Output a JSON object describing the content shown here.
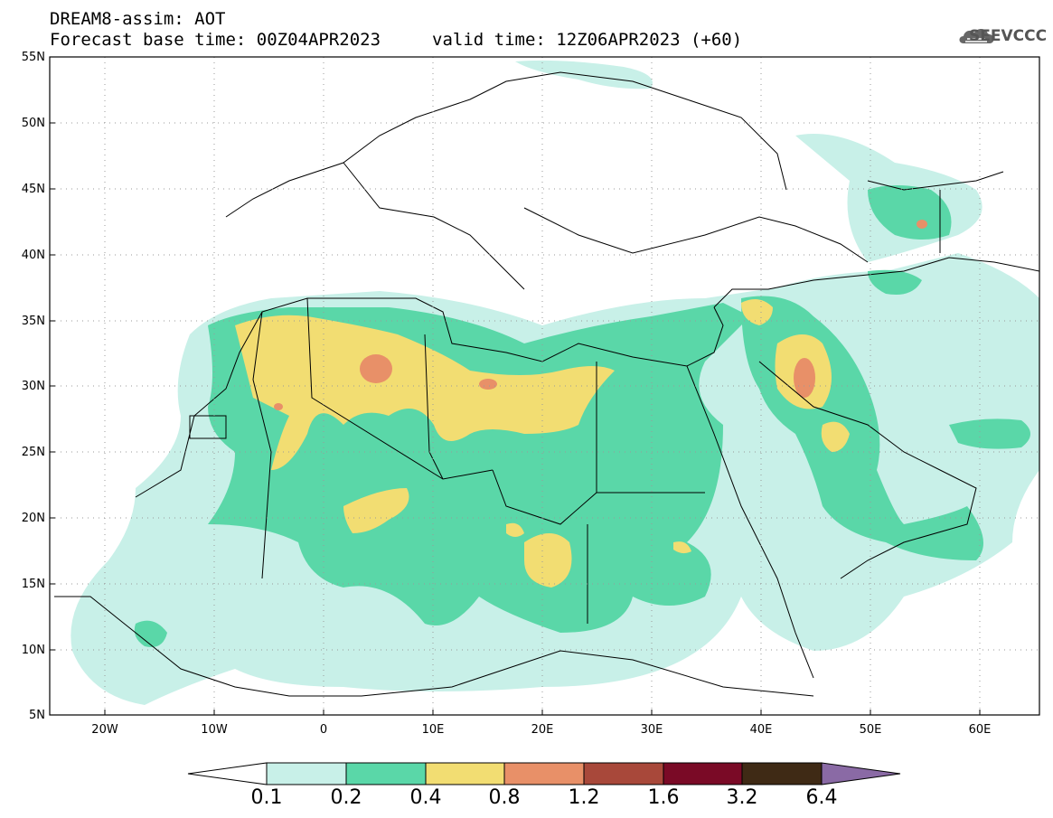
{
  "header": {
    "line1": "DREAM8-assim: AOT",
    "line2_base": "Forecast base time: 00Z04APR2023",
    "line2_valid": "valid time: 12Z06APR2023 (+60)",
    "logo_text": "SEEVCCC"
  },
  "map": {
    "variable": "AOT",
    "lat_range": [
      5,
      55
    ],
    "lon_range": [
      -25,
      65
    ],
    "lat_labels": [
      "55N",
      "50N",
      "45N",
      "40N",
      "35N",
      "30N",
      "25N",
      "20N",
      "15N",
      "10N",
      "5N"
    ],
    "lon_labels": [
      "20W",
      "10W",
      "0",
      "10E",
      "20E",
      "30E",
      "40E",
      "50E",
      "60E"
    ],
    "grid": "dotted"
  },
  "colorbar": {
    "levels": [
      "0.1",
      "0.2",
      "0.4",
      "0.8",
      "1.2",
      "1.6",
      "3.2",
      "6.4"
    ],
    "colors": [
      "#ffffff",
      "#c8f0e8",
      "#5ad7a8",
      "#f2dd72",
      "#e89068",
      "#a8483a",
      "#7a0a26",
      "#3f2a15",
      "#8a6aa5"
    ]
  }
}
